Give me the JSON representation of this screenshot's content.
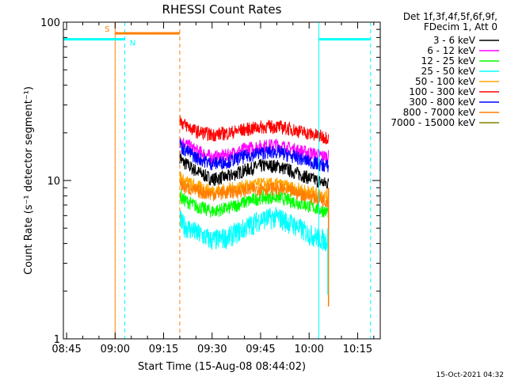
{
  "chart_data": {
    "type": "line",
    "title": "RHESSI Count Rates",
    "xlabel": "Start Time (15-Aug-08 08:44:02)",
    "ylabel": "Count Rate (s⁻¹ detector segment⁻¹)",
    "yscale": "log",
    "ylim": [
      1,
      100
    ],
    "xlim": [
      "08:44",
      "10:22"
    ],
    "x_ticks": [
      "08:45",
      "09:00",
      "09:15",
      "09:30",
      "09:45",
      "10:00",
      "10:15"
    ],
    "y_ticks": [
      "1",
      "10",
      "100"
    ],
    "grid": false,
    "legend_placement": "right",
    "legend_header": [
      "Det 1f,3f,4f,5f,6f,9f,",
      "FDecim 1, Att 0"
    ],
    "footer_date": "15-Oct-2021 04:32",
    "data_interval": [
      "09:20",
      "10:06"
    ],
    "series": [
      {
        "name": "3 - 6 keV",
        "color": "#000000",
        "x": [
          "09:20",
          "09:25",
          "09:30",
          "09:35",
          "09:40",
          "09:45",
          "09:50",
          "09:55",
          "10:00",
          "10:05"
        ],
        "values": [
          13.5,
          11.5,
          10.2,
          10.6,
          11.6,
          12.4,
          12.4,
          11.4,
          10.4,
          9.6
        ]
      },
      {
        "name": "6 - 12 keV",
        "color": "#ff00ff",
        "x": [
          "09:20",
          "09:25",
          "09:30",
          "09:35",
          "09:40",
          "09:45",
          "09:50",
          "09:55",
          "10:00",
          "10:05"
        ],
        "values": [
          18.0,
          15.5,
          14.0,
          14.5,
          15.8,
          16.5,
          16.8,
          15.8,
          15.0,
          14.2
        ]
      },
      {
        "name": "12 - 25 keV",
        "color": "#00ff00",
        "x": [
          "09:20",
          "09:25",
          "09:30",
          "09:35",
          "09:40",
          "09:45",
          "09:50",
          "09:55",
          "10:00",
          "10:05"
        ],
        "values": [
          7.8,
          6.9,
          6.4,
          6.7,
          7.3,
          7.8,
          7.9,
          7.4,
          6.9,
          6.4
        ]
      },
      {
        "name": "25 - 50 keV",
        "color": "#00ffff",
        "x": [
          "09:20",
          "09:25",
          "09:30",
          "09:35",
          "09:40",
          "09:45",
          "09:50",
          "09:55",
          "10:00",
          "10:05"
        ],
        "values": [
          5.4,
          4.7,
          4.2,
          4.4,
          5.0,
          5.7,
          5.9,
          5.3,
          4.6,
          4.2
        ]
      },
      {
        "name": "50 - 100 keV",
        "color": "#ffa500",
        "x": [
          "09:20",
          "09:25",
          "09:30",
          "09:35",
          "09:40",
          "09:45",
          "09:50",
          "09:55",
          "10:00",
          "10:05"
        ],
        "values": [
          10.2,
          9.2,
          8.6,
          8.8,
          9.2,
          9.5,
          9.5,
          9.0,
          8.5,
          8.0
        ]
      },
      {
        "name": "100 - 300 keV",
        "color": "#ff0000",
        "x": [
          "09:20",
          "09:25",
          "09:30",
          "09:35",
          "09:40",
          "09:45",
          "09:50",
          "09:55",
          "10:00",
          "10:05"
        ],
        "values": [
          23.5,
          20.5,
          19.5,
          20.0,
          21.0,
          21.8,
          22.0,
          21.0,
          19.8,
          18.8
        ]
      },
      {
        "name": "300 - 800 keV",
        "color": "#0000ff",
        "x": [
          "09:20",
          "09:25",
          "09:30",
          "09:35",
          "09:40",
          "09:45",
          "09:50",
          "09:55",
          "10:00",
          "10:05"
        ],
        "values": [
          16.5,
          14.0,
          12.8,
          13.2,
          14.2,
          15.0,
          15.2,
          14.2,
          13.2,
          12.4
        ]
      },
      {
        "name": "800 - 7000 keV",
        "color": "#ff7f00",
        "x": [
          "09:20",
          "09:25",
          "09:30",
          "09:35",
          "09:40",
          "09:45",
          "09:50",
          "09:55",
          "10:00",
          "10:05"
        ],
        "values": [
          9.3,
          8.6,
          8.2,
          8.4,
          8.7,
          8.9,
          8.9,
          8.5,
          8.0,
          7.5
        ]
      },
      {
        "name": "7000 - 15000 keV",
        "color": "#808000",
        "x": [],
        "values": []
      }
    ],
    "attenuator_bar": {
      "label": "S",
      "color": "#ff7f00",
      "from": "09:00",
      "to": "09:20",
      "level": 85
    },
    "night_bars": [
      {
        "label": "N",
        "color": "#00ffff",
        "from": "08:44",
        "to": "09:03",
        "level": 78
      },
      {
        "label": "",
        "color": "#00ffff",
        "from": "10:03",
        "to": "10:19",
        "level": 78
      }
    ],
    "vertical_markers": [
      {
        "time": "09:00",
        "color": "#ff7f00",
        "style": "solid"
      },
      {
        "time": "09:03",
        "color": "#00ffff",
        "style": "dashed"
      },
      {
        "time": "09:20",
        "color": "#ff7f00",
        "style": "dashed"
      },
      {
        "time": "10:03",
        "color": "#00ffff",
        "style": "solid"
      },
      {
        "time": "10:19",
        "color": "#00ffff",
        "style": "dashed"
      },
      {
        "time": "08:44",
        "color": "#00ffff",
        "style": "solid"
      }
    ]
  }
}
